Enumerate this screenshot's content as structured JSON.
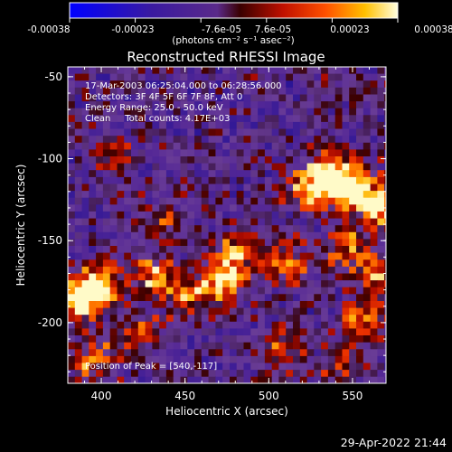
{
  "chart_data": {
    "type": "heatmap",
    "title": "Reconstructed RHESSI Image",
    "xlabel": "Heliocentric X (arcsec)",
    "ylabel": "Heliocentric Y (arcsec)",
    "xlim": [
      380,
      570
    ],
    "ylim": [
      -237,
      -44
    ],
    "x_ticks": [
      "400",
      "450",
      "500",
      "550"
    ],
    "y_ticks": [
      "-50",
      "-100",
      "-150",
      "-200"
    ],
    "colorbar": {
      "ticks": [
        "-0.00038",
        "-0.00023",
        "-7.6e-05",
        "7.6e-05",
        "0.00023",
        "0.00038"
      ],
      "unit_label": "(photons cm⁻² s⁻¹ asec⁻²)",
      "range": [
        -0.00038,
        0.00038
      ]
    },
    "annotations": [
      "17-Mar-2003 06:25:04.000 to 06:28:56.000",
      "Detectors: 3F 4F 5F 6F 7F 8F, Att 0",
      "Energy Range: 25.0 - 50.0 keV",
      "Clean     Total counts: 4.17E+03"
    ],
    "peak_label": "Position of Peak = [540,-117]",
    "hotspots": [
      {
        "x": 383,
        "y": -183,
        "level": 1.0
      },
      {
        "x": 398,
        "y": -175,
        "level": 0.85
      },
      {
        "x": 535,
        "y": -108,
        "level": 1.0
      },
      {
        "x": 550,
        "y": -117,
        "level": 0.95
      },
      {
        "x": 568,
        "y": -130,
        "level": 0.85
      },
      {
        "x": 522,
        "y": -118,
        "level": 0.7
      },
      {
        "x": 478,
        "y": -158,
        "level": 0.75
      },
      {
        "x": 470,
        "y": -175,
        "level": 0.75
      },
      {
        "x": 430,
        "y": -170,
        "level": 0.65
      },
      {
        "x": 450,
        "y": -180,
        "level": 0.6
      },
      {
        "x": 508,
        "y": -162,
        "level": 0.6
      },
      {
        "x": 555,
        "y": -195,
        "level": 0.55
      },
      {
        "x": 420,
        "y": -205,
        "level": 0.55
      },
      {
        "x": 392,
        "y": -220,
        "level": 0.6
      },
      {
        "x": 505,
        "y": -215,
        "level": 0.5
      },
      {
        "x": 540,
        "y": -225,
        "level": 0.4
      },
      {
        "x": 435,
        "y": -135,
        "level": 0.4
      },
      {
        "x": 405,
        "y": -95,
        "level": 0.4
      },
      {
        "x": 545,
        "y": -152,
        "level": 0.55
      },
      {
        "x": 560,
        "y": -168,
        "level": 0.55
      }
    ]
  },
  "timestamp": "29-Apr-2022 21:44"
}
